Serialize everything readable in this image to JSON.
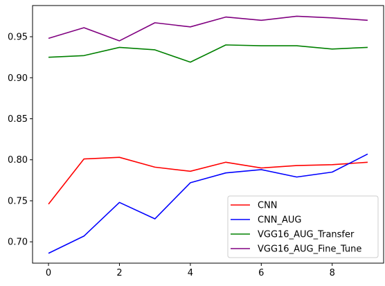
{
  "chart_data": {
    "type": "line",
    "title": "",
    "xlabel": "",
    "ylabel": "",
    "x": [
      0,
      1,
      2,
      3,
      4,
      5,
      6,
      7,
      8,
      9
    ],
    "xlim": [
      -0.45,
      9.45
    ],
    "ylim": [
      0.674,
      0.988
    ],
    "xticks": [
      0,
      2,
      4,
      6,
      8
    ],
    "xtick_labels": [
      "0",
      "2",
      "4",
      "6",
      "8"
    ],
    "yticks": [
      0.7,
      0.75,
      0.8,
      0.85,
      0.9,
      0.95
    ],
    "ytick_labels": [
      "0.70",
      "0.75",
      "0.80",
      "0.85",
      "0.90",
      "0.95"
    ],
    "grid": false,
    "legend_position": "lower-right",
    "series": [
      {
        "name": "CNN",
        "color": "#ff0000",
        "values": [
          0.746,
          0.801,
          0.803,
          0.791,
          0.786,
          0.797,
          0.79,
          0.793,
          0.794,
          0.797
        ]
      },
      {
        "name": "CNN_AUG",
        "color": "#0000ff",
        "values": [
          0.686,
          0.707,
          0.748,
          0.728,
          0.772,
          0.784,
          0.788,
          0.779,
          0.785,
          0.807
        ]
      },
      {
        "name": "VGG16_AUG_Transfer",
        "color": "#008000",
        "values": [
          0.925,
          0.927,
          0.937,
          0.934,
          0.919,
          0.94,
          0.939,
          0.939,
          0.935,
          0.937
        ]
      },
      {
        "name": "VGG16_AUG_Fine_Tune",
        "color": "#800080",
        "values": [
          0.948,
          0.961,
          0.945,
          0.967,
          0.962,
          0.974,
          0.97,
          0.975,
          0.973,
          0.97
        ]
      }
    ]
  }
}
